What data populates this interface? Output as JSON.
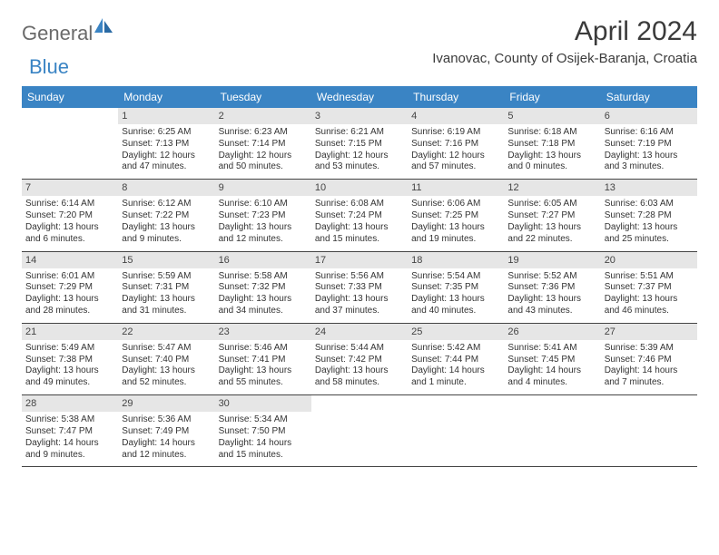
{
  "brand": {
    "part1": "General",
    "part2": "Blue"
  },
  "title": "April 2024",
  "subtitle": "Ivanovac, County of Osijek-Baranja, Croatia",
  "colors": {
    "header_bg": "#3a84c4",
    "header_text": "#ffffff",
    "daynum_bg": "#e6e6e6",
    "border": "#444444",
    "body_text": "#333333"
  },
  "dow": [
    "Sunday",
    "Monday",
    "Tuesday",
    "Wednesday",
    "Thursday",
    "Friday",
    "Saturday"
  ],
  "weeks": [
    [
      {
        "n": "",
        "sunrise": "",
        "sunset": "",
        "daylight": ""
      },
      {
        "n": "1",
        "sunrise": "Sunrise: 6:25 AM",
        "sunset": "Sunset: 7:13 PM",
        "daylight": "Daylight: 12 hours and 47 minutes."
      },
      {
        "n": "2",
        "sunrise": "Sunrise: 6:23 AM",
        "sunset": "Sunset: 7:14 PM",
        "daylight": "Daylight: 12 hours and 50 minutes."
      },
      {
        "n": "3",
        "sunrise": "Sunrise: 6:21 AM",
        "sunset": "Sunset: 7:15 PM",
        "daylight": "Daylight: 12 hours and 53 minutes."
      },
      {
        "n": "4",
        "sunrise": "Sunrise: 6:19 AM",
        "sunset": "Sunset: 7:16 PM",
        "daylight": "Daylight: 12 hours and 57 minutes."
      },
      {
        "n": "5",
        "sunrise": "Sunrise: 6:18 AM",
        "sunset": "Sunset: 7:18 PM",
        "daylight": "Daylight: 13 hours and 0 minutes."
      },
      {
        "n": "6",
        "sunrise": "Sunrise: 6:16 AM",
        "sunset": "Sunset: 7:19 PM",
        "daylight": "Daylight: 13 hours and 3 minutes."
      }
    ],
    [
      {
        "n": "7",
        "sunrise": "Sunrise: 6:14 AM",
        "sunset": "Sunset: 7:20 PM",
        "daylight": "Daylight: 13 hours and 6 minutes."
      },
      {
        "n": "8",
        "sunrise": "Sunrise: 6:12 AM",
        "sunset": "Sunset: 7:22 PM",
        "daylight": "Daylight: 13 hours and 9 minutes."
      },
      {
        "n": "9",
        "sunrise": "Sunrise: 6:10 AM",
        "sunset": "Sunset: 7:23 PM",
        "daylight": "Daylight: 13 hours and 12 minutes."
      },
      {
        "n": "10",
        "sunrise": "Sunrise: 6:08 AM",
        "sunset": "Sunset: 7:24 PM",
        "daylight": "Daylight: 13 hours and 15 minutes."
      },
      {
        "n": "11",
        "sunrise": "Sunrise: 6:06 AM",
        "sunset": "Sunset: 7:25 PM",
        "daylight": "Daylight: 13 hours and 19 minutes."
      },
      {
        "n": "12",
        "sunrise": "Sunrise: 6:05 AM",
        "sunset": "Sunset: 7:27 PM",
        "daylight": "Daylight: 13 hours and 22 minutes."
      },
      {
        "n": "13",
        "sunrise": "Sunrise: 6:03 AM",
        "sunset": "Sunset: 7:28 PM",
        "daylight": "Daylight: 13 hours and 25 minutes."
      }
    ],
    [
      {
        "n": "14",
        "sunrise": "Sunrise: 6:01 AM",
        "sunset": "Sunset: 7:29 PM",
        "daylight": "Daylight: 13 hours and 28 minutes."
      },
      {
        "n": "15",
        "sunrise": "Sunrise: 5:59 AM",
        "sunset": "Sunset: 7:31 PM",
        "daylight": "Daylight: 13 hours and 31 minutes."
      },
      {
        "n": "16",
        "sunrise": "Sunrise: 5:58 AM",
        "sunset": "Sunset: 7:32 PM",
        "daylight": "Daylight: 13 hours and 34 minutes."
      },
      {
        "n": "17",
        "sunrise": "Sunrise: 5:56 AM",
        "sunset": "Sunset: 7:33 PM",
        "daylight": "Daylight: 13 hours and 37 minutes."
      },
      {
        "n": "18",
        "sunrise": "Sunrise: 5:54 AM",
        "sunset": "Sunset: 7:35 PM",
        "daylight": "Daylight: 13 hours and 40 minutes."
      },
      {
        "n": "19",
        "sunrise": "Sunrise: 5:52 AM",
        "sunset": "Sunset: 7:36 PM",
        "daylight": "Daylight: 13 hours and 43 minutes."
      },
      {
        "n": "20",
        "sunrise": "Sunrise: 5:51 AM",
        "sunset": "Sunset: 7:37 PM",
        "daylight": "Daylight: 13 hours and 46 minutes."
      }
    ],
    [
      {
        "n": "21",
        "sunrise": "Sunrise: 5:49 AM",
        "sunset": "Sunset: 7:38 PM",
        "daylight": "Daylight: 13 hours and 49 minutes."
      },
      {
        "n": "22",
        "sunrise": "Sunrise: 5:47 AM",
        "sunset": "Sunset: 7:40 PM",
        "daylight": "Daylight: 13 hours and 52 minutes."
      },
      {
        "n": "23",
        "sunrise": "Sunrise: 5:46 AM",
        "sunset": "Sunset: 7:41 PM",
        "daylight": "Daylight: 13 hours and 55 minutes."
      },
      {
        "n": "24",
        "sunrise": "Sunrise: 5:44 AM",
        "sunset": "Sunset: 7:42 PM",
        "daylight": "Daylight: 13 hours and 58 minutes."
      },
      {
        "n": "25",
        "sunrise": "Sunrise: 5:42 AM",
        "sunset": "Sunset: 7:44 PM",
        "daylight": "Daylight: 14 hours and 1 minute."
      },
      {
        "n": "26",
        "sunrise": "Sunrise: 5:41 AM",
        "sunset": "Sunset: 7:45 PM",
        "daylight": "Daylight: 14 hours and 4 minutes."
      },
      {
        "n": "27",
        "sunrise": "Sunrise: 5:39 AM",
        "sunset": "Sunset: 7:46 PM",
        "daylight": "Daylight: 14 hours and 7 minutes."
      }
    ],
    [
      {
        "n": "28",
        "sunrise": "Sunrise: 5:38 AM",
        "sunset": "Sunset: 7:47 PM",
        "daylight": "Daylight: 14 hours and 9 minutes."
      },
      {
        "n": "29",
        "sunrise": "Sunrise: 5:36 AM",
        "sunset": "Sunset: 7:49 PM",
        "daylight": "Daylight: 14 hours and 12 minutes."
      },
      {
        "n": "30",
        "sunrise": "Sunrise: 5:34 AM",
        "sunset": "Sunset: 7:50 PM",
        "daylight": "Daylight: 14 hours and 15 minutes."
      },
      {
        "n": "",
        "sunrise": "",
        "sunset": "",
        "daylight": ""
      },
      {
        "n": "",
        "sunrise": "",
        "sunset": "",
        "daylight": ""
      },
      {
        "n": "",
        "sunrise": "",
        "sunset": "",
        "daylight": ""
      },
      {
        "n": "",
        "sunrise": "",
        "sunset": "",
        "daylight": ""
      }
    ]
  ]
}
